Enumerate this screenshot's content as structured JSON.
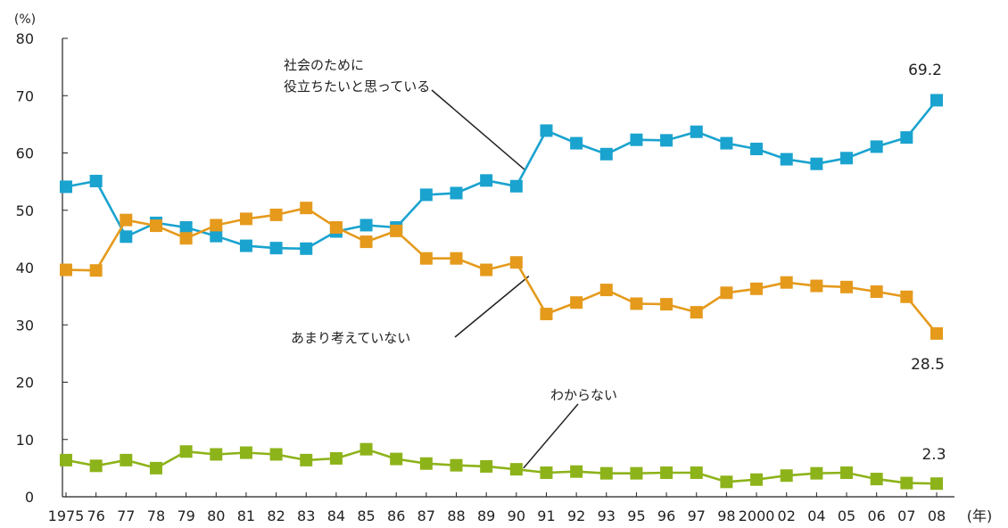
{
  "chart_data": {
    "type": "line",
    "ylabel": "(%)",
    "xlabel": "(年)",
    "ylim": [
      0,
      80
    ],
    "yticks": [
      0,
      10,
      20,
      30,
      40,
      50,
      60,
      70,
      80
    ],
    "categories": [
      "1975",
      "76",
      "77",
      "78",
      "79",
      "80",
      "81",
      "82",
      "83",
      "84",
      "85",
      "86",
      "87",
      "88",
      "89",
      "90",
      "91",
      "92",
      "93",
      "95",
      "96",
      "97",
      "98",
      "2000",
      "02",
      "04",
      "05",
      "06",
      "07",
      "08"
    ],
    "grid": false,
    "legend": "none",
    "series": [
      {
        "name": "社会のために\n役立ちたいと思っている",
        "label_lines": [
          "社会のために",
          "役立ちたいと思っている"
        ],
        "color": "#1aa3cf",
        "values": [
          54.1,
          55.1,
          45.4,
          47.8,
          47.0,
          45.5,
          43.8,
          43.4,
          43.3,
          46.3,
          47.4,
          47.0,
          52.7,
          53.0,
          55.2,
          54.2,
          63.9,
          61.7,
          59.8,
          62.3,
          62.2,
          63.7,
          61.7,
          60.7,
          58.9,
          58.1,
          59.1,
          61.1,
          62.7,
          69.2
        ],
        "end_label": "69.2"
      },
      {
        "name": "あまり考えていない",
        "label_lines": [
          "あまり考えていない"
        ],
        "color": "#e59a1c",
        "values": [
          39.6,
          39.5,
          48.3,
          47.3,
          45.1,
          47.4,
          48.5,
          49.2,
          50.4,
          47.0,
          44.5,
          46.4,
          41.6,
          41.6,
          39.6,
          40.9,
          31.9,
          33.9,
          36.1,
          33.7,
          33.6,
          32.2,
          35.6,
          36.3,
          37.4,
          36.8,
          36.6,
          35.8,
          34.9,
          28.5
        ],
        "end_label": "28.5"
      },
      {
        "name": "わからない",
        "label_lines": [
          "わからない"
        ],
        "color": "#8db31a",
        "values": [
          6.4,
          5.4,
          6.4,
          5.0,
          7.9,
          7.4,
          7.7,
          7.4,
          6.4,
          6.7,
          8.3,
          6.6,
          5.8,
          5.5,
          5.3,
          4.8,
          4.2,
          4.4,
          4.1,
          4.1,
          4.2,
          4.2,
          2.6,
          3.0,
          3.7,
          4.1,
          4.2,
          3.1,
          2.4,
          2.3
        ],
        "end_label": "2.3"
      }
    ]
  }
}
